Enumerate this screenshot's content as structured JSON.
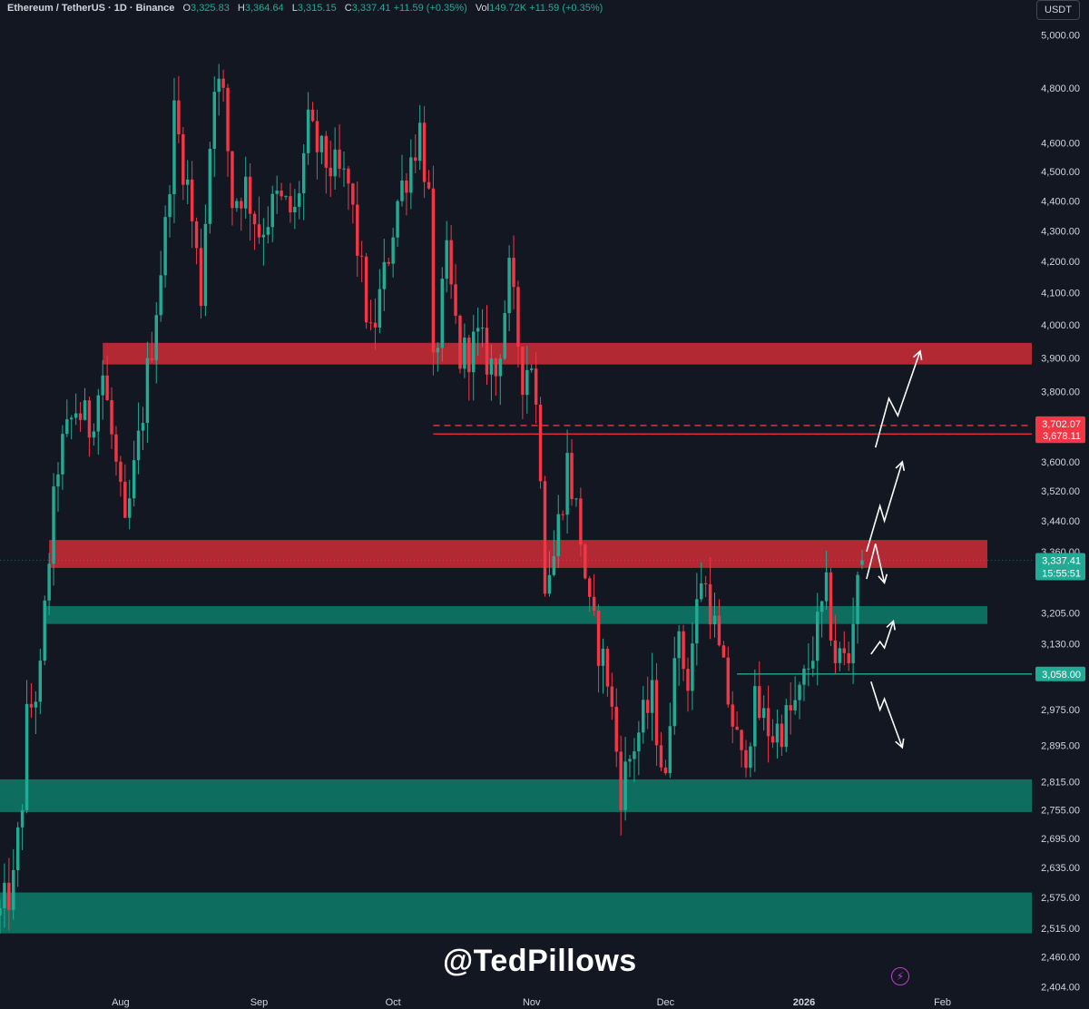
{
  "header": {
    "symbol": "Ethereum / TetherUS · 1D · Binance",
    "open_label": "O",
    "open": "3,325.83",
    "high_label": "H",
    "high": "3,364.64",
    "low_label": "L",
    "low": "3,315.15",
    "close_label": "C",
    "close": "3,337.41",
    "change": "+11.59 (+0.35%)",
    "vol_label": "Vol",
    "vol": "149.72K",
    "vol_change": "+11.59 (+0.35%)"
  },
  "currency_button": "USDT",
  "watermark": "@TedPillows",
  "colors": {
    "background": "#131722",
    "up": "#22ab94",
    "down": "#f23645",
    "resistance_zone": "#b22833",
    "support_zone": "#0d6e60",
    "text": "#d1d4dc"
  },
  "chart_data": {
    "type": "candlestick",
    "ylim": [
      2400,
      5050
    ],
    "y_scale": "log",
    "y_ticks": [
      5000,
      4800,
      4600,
      4500,
      4400,
      4300,
      4200,
      4100,
      4000,
      3900,
      3800,
      3600,
      3520,
      3440,
      3360,
      3205,
      3130,
      2975,
      2895,
      2815,
      2755,
      2695,
      2635,
      2575,
      2515,
      2460,
      2404
    ],
    "y_tick_labels": [
      "5,000.00",
      "4,800.00",
      "4,600.00",
      "4,500.00",
      "4,400.00",
      "4,300.00",
      "4,200.00",
      "4,100.00",
      "4,000.00",
      "3,900.00",
      "3,800.00",
      "3,600.00",
      "3,520.00",
      "3,440.00",
      "3,360.00",
      "3,205.00",
      "3,130.00",
      "2,975.00",
      "2,895.00",
      "2,815.00",
      "2,755.00",
      "2,695.00",
      "2,635.00",
      "2,575.00",
      "2,515.00",
      "2,460.00",
      "2,404.00"
    ],
    "x_labels": [
      {
        "label": "Aug",
        "date": "2025-08-01"
      },
      {
        "label": "Sep",
        "date": "2025-09-01"
      },
      {
        "label": "Oct",
        "date": "2025-10-01"
      },
      {
        "label": "Nov",
        "date": "2025-11-01"
      },
      {
        "label": "Dec",
        "date": "2025-12-01"
      },
      {
        "label": "2026",
        "date": "2026-01-01"
      },
      {
        "label": "Feb",
        "date": "2026-02-01"
      }
    ],
    "x_range": [
      "2025-07-05",
      "2026-02-21"
    ],
    "anchors": [
      {
        "date": "2025-07-05",
        "price": 2540
      },
      {
        "date": "2025-07-08",
        "price": 2600
      },
      {
        "date": "2025-07-10",
        "price": 2780
      },
      {
        "date": "2025-07-11",
        "price": 2950
      },
      {
        "date": "2025-07-14",
        "price": 3050
      },
      {
        "date": "2025-07-16",
        "price": 3350
      },
      {
        "date": "2025-07-18",
        "price": 3600
      },
      {
        "date": "2025-07-22",
        "price": 3750
      },
      {
        "date": "2025-07-25",
        "price": 3700
      },
      {
        "date": "2025-07-28",
        "price": 3850
      },
      {
        "date": "2025-08-02",
        "price": 3400
      },
      {
        "date": "2025-08-05",
        "price": 3650
      },
      {
        "date": "2025-08-08",
        "price": 3950
      },
      {
        "date": "2025-08-11",
        "price": 4300
      },
      {
        "date": "2025-08-13",
        "price": 4700
      },
      {
        "date": "2025-08-16",
        "price": 4450
      },
      {
        "date": "2025-08-19",
        "price": 4100
      },
      {
        "date": "2025-08-22",
        "price": 4850
      },
      {
        "date": "2025-08-24",
        "price": 4750
      },
      {
        "date": "2025-08-26",
        "price": 4400
      },
      {
        "date": "2025-08-29",
        "price": 4450
      },
      {
        "date": "2025-09-01",
        "price": 4300
      },
      {
        "date": "2025-09-05",
        "price": 4400
      },
      {
        "date": "2025-09-09",
        "price": 4350
      },
      {
        "date": "2025-09-12",
        "price": 4650
      },
      {
        "date": "2025-09-15",
        "price": 4550
      },
      {
        "date": "2025-09-18",
        "price": 4500
      },
      {
        "date": "2025-09-21",
        "price": 4450
      },
      {
        "date": "2025-09-24",
        "price": 4150
      },
      {
        "date": "2025-09-26",
        "price": 3950
      },
      {
        "date": "2025-09-29",
        "price": 4150
      },
      {
        "date": "2025-10-02",
        "price": 4400
      },
      {
        "date": "2025-10-05",
        "price": 4550
      },
      {
        "date": "2025-10-07",
        "price": 4650
      },
      {
        "date": "2025-10-09",
        "price": 4400
      },
      {
        "date": "2025-10-10",
        "price": 3850
      },
      {
        "date": "2025-10-13",
        "price": 4200
      },
      {
        "date": "2025-10-16",
        "price": 3900
      },
      {
        "date": "2025-10-20",
        "price": 3950
      },
      {
        "date": "2025-10-24",
        "price": 3850
      },
      {
        "date": "2025-10-27",
        "price": 4150
      },
      {
        "date": "2025-10-30",
        "price": 3850
      },
      {
        "date": "2025-11-01",
        "price": 3900
      },
      {
        "date": "2025-11-03",
        "price": 3600
      },
      {
        "date": "2025-11-04",
        "price": 3300
      },
      {
        "date": "2025-11-06",
        "price": 3350
      },
      {
        "date": "2025-11-09",
        "price": 3600
      },
      {
        "date": "2025-11-12",
        "price": 3400
      },
      {
        "date": "2025-11-14",
        "price": 3200
      },
      {
        "date": "2025-11-18",
        "price": 3050
      },
      {
        "date": "2025-11-21",
        "price": 2800
      },
      {
        "date": "2025-11-24",
        "price": 2900
      },
      {
        "date": "2025-11-28",
        "price": 3000
      },
      {
        "date": "2025-12-01",
        "price": 2800
      },
      {
        "date": "2025-12-03",
        "price": 3150
      },
      {
        "date": "2025-12-06",
        "price": 3050
      },
      {
        "date": "2025-12-09",
        "price": 3300
      },
      {
        "date": "2025-12-11",
        "price": 3230
      },
      {
        "date": "2025-12-13",
        "price": 3100
      },
      {
        "date": "2025-12-16",
        "price": 2950
      },
      {
        "date": "2025-12-18",
        "price": 2850
      },
      {
        "date": "2025-12-21",
        "price": 2980
      },
      {
        "date": "2025-12-25",
        "price": 2920
      },
      {
        "date": "2025-12-28",
        "price": 2950
      },
      {
        "date": "2025-12-31",
        "price": 3000
      },
      {
        "date": "2026-01-03",
        "price": 3120
      },
      {
        "date": "2026-01-06",
        "price": 3250
      },
      {
        "date": "2026-01-08",
        "price": 3100
      },
      {
        "date": "2026-01-11",
        "price": 3090
      },
      {
        "date": "2026-01-13",
        "price": 3320
      },
      {
        "date": "2026-01-14",
        "price": 3337
      }
    ],
    "last_bar": {
      "date": "2026-01-14",
      "open": 3325.83,
      "high": 3364.64,
      "low": 3315.15,
      "close": 3337.41
    },
    "zones": [
      {
        "kind": "resistance",
        "from": 3880,
        "to": 3945,
        "start": "2025-07-28",
        "color": "#b22833"
      },
      {
        "kind": "resistance",
        "from": 3318,
        "to": 3390,
        "start": "2025-07-16",
        "color": "#b22833"
      },
      {
        "kind": "support",
        "from": 3178,
        "to": 3222,
        "start": "2025-07-15",
        "color": "#0d6e60"
      },
      {
        "kind": "support",
        "from": 2750,
        "to": 2820,
        "start": "2025-07-05",
        "color": "#0d6e60"
      },
      {
        "kind": "support",
        "from": 2505,
        "to": 2585,
        "start": "2025-07-05",
        "color": "#0d6e60"
      }
    ],
    "horizontal_lines": [
      {
        "price": 3702.07,
        "label": "3,702.07",
        "style": "dashed",
        "color": "#f23645",
        "start": "2025-10-10"
      },
      {
        "price": 3678.11,
        "label": "3,678.11",
        "style": "solid",
        "color": "#f23645",
        "start": "2025-10-10"
      },
      {
        "price": 3058.0,
        "label": "3,058.00",
        "style": "solid",
        "color": "#22ab94",
        "start": "2025-12-17"
      }
    ],
    "price_marker": {
      "price": 3337.41,
      "label": "3,337.41",
      "countdown": "15:55:51",
      "color": "#22ab94"
    },
    "scenario_paths": [
      {
        "color": "#ffffff",
        "points": [
          [
            "2026-01-15",
            3360
          ],
          [
            "2026-01-18",
            3480
          ],
          [
            "2026-01-19",
            3440
          ],
          [
            "2026-01-23",
            3600
          ]
        ]
      },
      {
        "color": "#ffffff",
        "points": [
          [
            "2026-01-17",
            3640
          ],
          [
            "2026-01-20",
            3780
          ],
          [
            "2026-01-22",
            3730
          ],
          [
            "2026-01-27",
            3920
          ]
        ]
      },
      {
        "color": "#ffffff",
        "points": [
          [
            "2026-01-15",
            3290
          ],
          [
            "2026-01-17",
            3380
          ],
          [
            "2026-01-19",
            3280
          ]
        ]
      },
      {
        "color": "#ffffff",
        "points": [
          [
            "2026-01-16",
            3105
          ],
          [
            "2026-01-18",
            3135
          ],
          [
            "2026-01-19",
            3120
          ],
          [
            "2026-01-21",
            3185
          ]
        ]
      },
      {
        "color": "#ffffff",
        "points": [
          [
            "2026-01-16",
            3040
          ],
          [
            "2026-01-18",
            2975
          ],
          [
            "2026-01-19",
            3000
          ],
          [
            "2026-01-23",
            2890
          ]
        ]
      }
    ]
  }
}
